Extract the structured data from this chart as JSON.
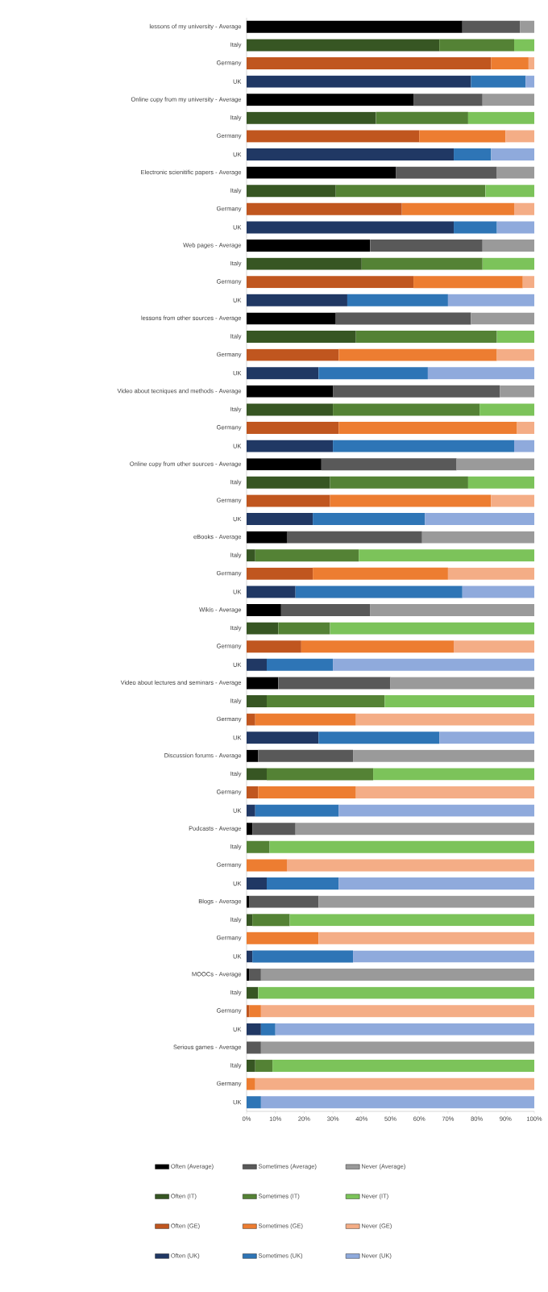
{
  "chart_data": {
    "type": "bar",
    "orientation": "horizontal",
    "stacked": true,
    "legend": "bottom",
    "categories": [
      "lessons of my university - Average",
      "Italy",
      "Germany",
      "UK",
      "Online copy from my university - Average",
      "Italy",
      "Germany",
      "UK",
      "Electronic scienitific papers - Average",
      "Italy",
      "Germany",
      "UK",
      "Web pages - Average",
      "Italy",
      "Germany",
      "UK",
      "lessons from other sources - Average",
      "Italy",
      "Germany",
      "UK",
      "Video about tecniques and methods - Average",
      "Italy",
      "Germany",
      "UK",
      "Online copy from other sources - Average",
      "Italy",
      "Germany",
      "UK",
      "eBooks - Average",
      "Italy",
      "Germany",
      "UK",
      "Wikis - Average",
      "Italy",
      "Germany",
      "UK",
      "Video about lectures and seminars - Average",
      "Italy",
      "Germany",
      "UK",
      "Discussion forums - Average",
      "Italy",
      "Germany",
      "UK",
      "Podcasts - Average",
      "Italy",
      "Germany",
      "UK",
      "Blogs - Average",
      "Italy",
      "Germany",
      "UK",
      "MOOCs - Average",
      "Italy",
      "Germany",
      "UK",
      "Serious games - Average",
      "Italy",
      "Germany",
      "UK"
    ],
    "xlim": [
      0,
      100
    ],
    "xticks": [
      {
        "value": 0,
        "label": "0%"
      },
      {
        "value": 10,
        "label": "10%"
      },
      {
        "value": 20,
        "label": "20%"
      },
      {
        "value": 30,
        "label": "30%"
      },
      {
        "value": 40,
        "label": "40%"
      },
      {
        "value": 50,
        "label": "50%"
      },
      {
        "value": 60,
        "label": "60%"
      },
      {
        "value": 70,
        "label": "70%"
      },
      {
        "value": 80,
        "label": "80%"
      },
      {
        "value": 90,
        "label": "90%"
      },
      {
        "value": 100,
        "label": "100%"
      }
    ],
    "series": [
      {
        "name": "Often (Average)",
        "color": "#000000",
        "values": [
          75,
          null,
          null,
          null,
          58,
          null,
          null,
          null,
          52,
          null,
          null,
          null,
          43,
          null,
          null,
          null,
          31,
          null,
          null,
          null,
          30,
          null,
          null,
          null,
          26,
          null,
          null,
          null,
          14,
          null,
          null,
          null,
          12,
          null,
          null,
          null,
          11,
          null,
          null,
          null,
          4,
          null,
          null,
          null,
          2,
          null,
          null,
          null,
          1,
          null,
          null,
          null,
          1,
          null,
          null,
          null,
          null,
          null,
          null,
          null
        ]
      },
      {
        "name": "Sometimes (Average)",
        "color": "#595959",
        "values": [
          20,
          null,
          null,
          null,
          24,
          null,
          null,
          null,
          35,
          null,
          null,
          null,
          39,
          null,
          null,
          null,
          47,
          null,
          null,
          null,
          58,
          null,
          null,
          null,
          47,
          null,
          null,
          null,
          47,
          null,
          null,
          null,
          31,
          null,
          null,
          null,
          39,
          null,
          null,
          null,
          33,
          null,
          null,
          null,
          15,
          null,
          null,
          null,
          24,
          null,
          null,
          null,
          4,
          null,
          null,
          null,
          5,
          null,
          null,
          null
        ]
      },
      {
        "name": "Never (Average)",
        "color": "#9a9a9a",
        "values": [
          5,
          null,
          null,
          null,
          18,
          null,
          null,
          null,
          13,
          null,
          null,
          null,
          18,
          null,
          null,
          null,
          22,
          null,
          null,
          null,
          12,
          null,
          null,
          null,
          27,
          null,
          null,
          null,
          39,
          null,
          null,
          null,
          57,
          null,
          null,
          null,
          50,
          null,
          null,
          null,
          63,
          null,
          null,
          null,
          83,
          null,
          null,
          null,
          75,
          null,
          null,
          null,
          95,
          null,
          null,
          null,
          95,
          null,
          null,
          null
        ]
      },
      {
        "name": "Often (IT)",
        "color": "#375623",
        "values": [
          null,
          67,
          null,
          null,
          null,
          45,
          null,
          null,
          null,
          31,
          null,
          null,
          null,
          40,
          null,
          null,
          null,
          38,
          null,
          null,
          null,
          30,
          null,
          null,
          null,
          29,
          null,
          null,
          null,
          3,
          null,
          null,
          null,
          11,
          null,
          null,
          null,
          7,
          null,
          null,
          null,
          7,
          null,
          null,
          null,
          null,
          null,
          null,
          null,
          2,
          null,
          null,
          null,
          4,
          null,
          null,
          null,
          3,
          null,
          null
        ]
      },
      {
        "name": "Sometimes (IT)",
        "color": "#548235",
        "values": [
          null,
          26,
          null,
          null,
          null,
          32,
          null,
          null,
          null,
          52,
          null,
          null,
          null,
          42,
          null,
          null,
          null,
          49,
          null,
          null,
          null,
          51,
          null,
          null,
          null,
          48,
          null,
          null,
          null,
          36,
          null,
          null,
          null,
          18,
          null,
          null,
          null,
          41,
          null,
          null,
          null,
          37,
          null,
          null,
          null,
          8,
          null,
          null,
          null,
          13,
          null,
          null,
          null,
          null,
          null,
          null,
          null,
          6,
          null,
          null
        ]
      },
      {
        "name": "Never (IT)",
        "color": "#7cc35a",
        "values": [
          null,
          7,
          null,
          null,
          null,
          23,
          null,
          null,
          null,
          17,
          null,
          null,
          null,
          18,
          null,
          null,
          null,
          13,
          null,
          null,
          null,
          19,
          null,
          null,
          null,
          23,
          null,
          null,
          null,
          61,
          null,
          null,
          null,
          71,
          null,
          null,
          null,
          52,
          null,
          null,
          null,
          56,
          null,
          null,
          null,
          92,
          null,
          null,
          null,
          85,
          null,
          null,
          null,
          96,
          null,
          null,
          null,
          91,
          null,
          null
        ]
      },
      {
        "name": "Often (GE)",
        "color": "#c0561f",
        "values": [
          null,
          null,
          85,
          null,
          null,
          null,
          60,
          null,
          null,
          null,
          54,
          null,
          null,
          null,
          58,
          null,
          null,
          null,
          32,
          null,
          null,
          null,
          32,
          null,
          null,
          null,
          29,
          null,
          null,
          null,
          23,
          null,
          null,
          null,
          19,
          null,
          null,
          null,
          3,
          null,
          null,
          null,
          4,
          null,
          null,
          null,
          null,
          null,
          null,
          null,
          null,
          null,
          null,
          null,
          1,
          null,
          null,
          null,
          null,
          null
        ]
      },
      {
        "name": "Sometimes (GE)",
        "color": "#ed7d31",
        "values": [
          null,
          null,
          13,
          null,
          null,
          null,
          30,
          null,
          null,
          null,
          39,
          null,
          null,
          null,
          38,
          null,
          null,
          null,
          55,
          null,
          null,
          null,
          62,
          null,
          null,
          null,
          56,
          null,
          null,
          null,
          47,
          null,
          null,
          null,
          53,
          null,
          null,
          null,
          35,
          null,
          null,
          null,
          34,
          null,
          null,
          null,
          14,
          null,
          null,
          null,
          25,
          null,
          null,
          null,
          4,
          null,
          null,
          null,
          3,
          null
        ]
      },
      {
        "name": "Never (GE)",
        "color": "#f4ad86",
        "values": [
          null,
          null,
          2,
          null,
          null,
          null,
          10,
          null,
          null,
          null,
          7,
          null,
          null,
          null,
          4,
          null,
          null,
          null,
          13,
          null,
          null,
          null,
          6,
          null,
          null,
          null,
          15,
          null,
          null,
          null,
          30,
          null,
          null,
          null,
          28,
          null,
          null,
          null,
          62,
          null,
          null,
          null,
          62,
          null,
          null,
          null,
          86,
          null,
          null,
          null,
          75,
          null,
          null,
          null,
          95,
          null,
          null,
          null,
          97,
          null
        ]
      },
      {
        "name": "Often (UK)",
        "color": "#203864",
        "values": [
          null,
          null,
          null,
          78,
          null,
          null,
          null,
          72,
          null,
          null,
          null,
          72,
          null,
          null,
          null,
          35,
          null,
          null,
          null,
          25,
          null,
          null,
          null,
          30,
          null,
          null,
          null,
          23,
          null,
          null,
          null,
          17,
          null,
          null,
          null,
          7,
          null,
          null,
          null,
          25,
          null,
          null,
          null,
          3,
          null,
          null,
          null,
          7,
          null,
          null,
          null,
          2,
          null,
          null,
          null,
          5,
          null,
          null,
          null,
          null
        ]
      },
      {
        "name": "Sometimes (UK)",
        "color": "#2e75b6",
        "values": [
          null,
          null,
          null,
          19,
          null,
          null,
          null,
          13,
          null,
          null,
          null,
          15,
          null,
          null,
          null,
          35,
          null,
          null,
          null,
          38,
          null,
          null,
          null,
          63,
          null,
          null,
          null,
          39,
          null,
          null,
          null,
          58,
          null,
          null,
          null,
          23,
          null,
          null,
          null,
          42,
          null,
          null,
          null,
          29,
          null,
          null,
          null,
          25,
          null,
          null,
          null,
          35,
          null,
          null,
          null,
          5,
          null,
          null,
          null,
          5
        ]
      },
      {
        "name": "Never (UK)",
        "color": "#8faadc",
        "values": [
          null,
          null,
          null,
          3,
          null,
          null,
          null,
          15,
          null,
          null,
          null,
          13,
          null,
          null,
          null,
          30,
          null,
          null,
          null,
          37,
          null,
          null,
          null,
          7,
          null,
          null,
          null,
          38,
          null,
          null,
          null,
          25,
          null,
          null,
          null,
          70,
          null,
          null,
          null,
          33,
          null,
          null,
          null,
          68,
          null,
          null,
          null,
          68,
          null,
          null,
          null,
          63,
          null,
          null,
          null,
          90,
          null,
          null,
          null,
          95
        ]
      }
    ]
  }
}
